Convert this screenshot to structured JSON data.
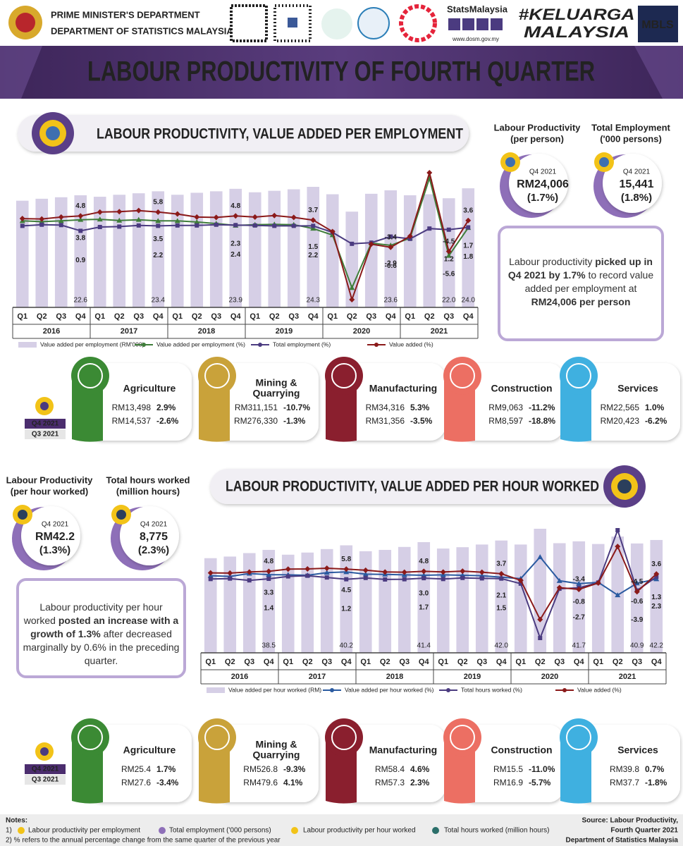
{
  "header": {
    "org_lines": [
      "PRIME MINISTER'S DEPARTMENT",
      "DEPARTMENT OF STATISTICS MALAYSIA"
    ],
    "logo_texts": [
      "StatsMalaysia",
      "www.dosm.gov.my",
      "#KELUARGA",
      "MALAYSIA",
      "MBLS"
    ]
  },
  "banner_title": "LABOUR PRODUCTIVITY OF FOURTH QUARTER",
  "chart_data": [
    {
      "type": "combo",
      "title": "LABOUR PRODUCTIVITY, VALUE ADDED PER EMPLOYMENT",
      "categories": [
        "Q1",
        "Q2",
        "Q3",
        "Q4",
        "Q1",
        "Q2",
        "Q3",
        "Q4",
        "Q1",
        "Q2",
        "Q3",
        "Q4",
        "Q1",
        "Q2",
        "Q3",
        "Q4",
        "Q1",
        "Q2",
        "Q3",
        "Q4",
        "Q1",
        "Q2",
        "Q3",
        "Q4"
      ],
      "category_groups": [
        "2016",
        "2017",
        "2018",
        "2019",
        "2020",
        "2021"
      ],
      "series": [
        {
          "name": "Value added per employment (RM'000)",
          "type": "bar",
          "color": "#d6cfe6",
          "values": [
            21.5,
            21.9,
            22.2,
            22.6,
            22.3,
            22.7,
            23.0,
            23.4,
            22.7,
            23.1,
            23.4,
            23.9,
            23.2,
            23.5,
            23.8,
            24.3,
            22.8,
            19.3,
            22.9,
            23.6,
            22.6,
            22.8,
            22.0,
            24.0
          ],
          "value_labels": [
            null,
            null,
            null,
            "22.6",
            null,
            null,
            null,
            "23.4",
            null,
            null,
            null,
            "23.9",
            null,
            null,
            null,
            "24.3",
            null,
            null,
            null,
            "23.6",
            null,
            null,
            "22.0",
            "24.0"
          ]
        },
        {
          "name": "Value added per employment (%)",
          "type": "line",
          "marker": "triangle",
          "color": "#3f7d3a",
          "values": [
            3.5,
            3.3,
            3.5,
            3.8,
            3.9,
            3.6,
            3.8,
            3.5,
            3.5,
            3.2,
            2.8,
            2.3,
            2.5,
            2.6,
            2.5,
            1.5,
            -0.2,
            -14.0,
            -2.3,
            -2.9,
            -1.0,
            14.7,
            -5.6,
            1.7
          ],
          "value_labels": [
            null,
            null,
            null,
            "3.8",
            null,
            null,
            null,
            "3.5",
            null,
            null,
            null,
            "2.3",
            null,
            null,
            null,
            "1.5",
            null,
            null,
            null,
            "-2.9",
            null,
            null,
            "-5.6",
            "1.7"
          ]
        },
        {
          "name": "Total employment (%)",
          "type": "line",
          "marker": "square",
          "color": "#4b3b80",
          "values": [
            2.2,
            2.5,
            2.4,
            0.9,
            1.9,
            2.0,
            2.3,
            2.2,
            2.3,
            2.3,
            2.5,
            2.4,
            2.3,
            2.2,
            2.2,
            2.2,
            0.5,
            -2.5,
            -2.2,
            -0.6,
            -1.2,
            1.5,
            1.2,
            1.8
          ],
          "value_labels": [
            null,
            null,
            null,
            "0.9",
            null,
            null,
            null,
            "2.2",
            null,
            null,
            null,
            "2.4",
            null,
            null,
            null,
            "2.2",
            null,
            null,
            null,
            "-0.6",
            null,
            null,
            "1.2",
            "1.8"
          ]
        },
        {
          "name": "Value added (%)",
          "type": "line",
          "marker": "diamond",
          "color": "#8b1a1a",
          "values": [
            4.1,
            4.0,
            4.5,
            4.8,
            5.8,
            5.9,
            6.2,
            5.8,
            5.3,
            4.5,
            4.4,
            4.8,
            4.5,
            4.9,
            4.4,
            3.7,
            0.7,
            -17.1,
            -2.6,
            -3.4,
            -0.5,
            16.1,
            -4.5,
            3.6
          ],
          "value_labels": [
            null,
            null,
            null,
            "4.8",
            null,
            null,
            null,
            "5.8",
            null,
            null,
            null,
            "4.8",
            null,
            null,
            null,
            "3.7",
            null,
            null,
            null,
            "-3.4",
            null,
            null,
            "-4.5",
            "3.6"
          ]
        }
      ]
    },
    {
      "type": "combo",
      "title": "LABOUR PRODUCTIVITY, VALUE ADDED PER HOUR WORKED",
      "categories": [
        "Q1",
        "Q2",
        "Q3",
        "Q4",
        "Q1",
        "Q2",
        "Q3",
        "Q4",
        "Q1",
        "Q2",
        "Q3",
        "Q4",
        "Q1",
        "Q2",
        "Q3",
        "Q4",
        "Q1",
        "Q2",
        "Q3",
        "Q4",
        "Q1",
        "Q2",
        "Q3",
        "Q4"
      ],
      "category_groups": [
        "2016",
        "2017",
        "2018",
        "2019",
        "2020",
        "2021"
      ],
      "series": [
        {
          "name": "Value added per hour worked (RM)",
          "type": "bar",
          "color": "#d6cfe6",
          "values": [
            35.4,
            36.0,
            37.3,
            38.5,
            36.7,
            37.5,
            38.8,
            40.2,
            38.0,
            38.5,
            39.6,
            41.4,
            39.0,
            39.5,
            40.5,
            42.0,
            40.5,
            46.4,
            41.0,
            41.7,
            40.7,
            43.5,
            40.9,
            42.2
          ],
          "value_labels": [
            null,
            null,
            null,
            "38.5",
            null,
            null,
            null,
            "40.2",
            null,
            null,
            null,
            "41.4",
            null,
            null,
            null,
            "42.0",
            null,
            null,
            null,
            "41.7",
            null,
            null,
            "40.9",
            "42.2"
          ]
        },
        {
          "name": "Value added per hour worked (%)",
          "type": "line",
          "marker": "triangle",
          "color": "#2a5aa0",
          "values": [
            2.8,
            2.5,
            3.8,
            3.3,
            3.2,
            3.0,
            4.2,
            4.5,
            3.5,
            3.4,
            3.2,
            3.0,
            3.2,
            3.0,
            2.8,
            2.1,
            1.5,
            11.3,
            0.5,
            -0.8,
            -0.2,
            -6.0,
            -0.6,
            1.3
          ],
          "value_labels": [
            null,
            null,
            null,
            "3.3",
            null,
            null,
            null,
            "4.5",
            null,
            null,
            null,
            "3.0",
            null,
            null,
            null,
            "2.1",
            null,
            null,
            null,
            "-0.8",
            null,
            null,
            "-0.6",
            "1.3"
          ]
        },
        {
          "name": "Total hours worked (%)",
          "type": "line",
          "marker": "square",
          "color": "#4b3b80",
          "values": [
            1.3,
            1.5,
            0.7,
            1.4,
            2.5,
            2.8,
            2.0,
            1.2,
            1.8,
            1.1,
            1.2,
            1.7,
            1.3,
            1.8,
            1.6,
            1.5,
            -0.8,
            -25.5,
            -3.1,
            -2.7,
            -0.3,
            23.5,
            -3.9,
            2.3
          ],
          "value_labels": [
            null,
            null,
            null,
            "1.4",
            null,
            null,
            null,
            "1.2",
            null,
            null,
            null,
            "1.7",
            null,
            null,
            null,
            "1.5",
            null,
            null,
            null,
            "-2.7",
            null,
            null,
            "-3.9",
            "2.3"
          ]
        },
        {
          "name": "Value added (%)",
          "type": "line",
          "marker": "diamond",
          "color": "#8b1a1a",
          "values": [
            4.1,
            4.0,
            4.5,
            4.8,
            5.8,
            5.9,
            6.2,
            5.8,
            5.3,
            4.5,
            4.4,
            4.8,
            4.5,
            4.9,
            4.4,
            3.7,
            0.7,
            -17.1,
            -2.6,
            -3.4,
            -0.5,
            16.1,
            -4.5,
            3.6
          ],
          "value_labels": [
            null,
            null,
            null,
            "4.8",
            null,
            null,
            null,
            "5.8",
            null,
            null,
            null,
            "4.8",
            null,
            null,
            null,
            "3.7",
            null,
            null,
            null,
            "-3.4",
            null,
            null,
            "-4.5",
            "3.6"
          ]
        }
      ]
    }
  ],
  "section1": {
    "kpis": [
      {
        "label_lines": [
          "Labour Productivity",
          "(per person)"
        ],
        "period": "Q4 2021",
        "value": "RM24,006",
        "change": "(1.7%)"
      },
      {
        "label_lines": [
          "Total Employment",
          "('000 persons)"
        ],
        "period": "Q4 2021",
        "value": "15,441",
        "change": "(1.8%)"
      }
    ],
    "summary": [
      {
        "text": "Labour productivity ",
        "bold": false
      },
      {
        "text": "picked up in Q4 2021 by 1.7%",
        "bold": true
      },
      {
        "text": " to record value added per employment at ",
        "bold": false
      },
      {
        "text": "RM24,006 per person",
        "bold": true
      }
    ],
    "sector_legend": [
      "Q4 2021",
      "Q3 2021"
    ],
    "sectors": [
      {
        "name_lines": [
          "Agriculture"
        ],
        "color": "#3b8a34",
        "q4_value": "RM13,498",
        "q4_change": "2.9%",
        "q3_value": "RM14,537",
        "q3_change": "-2.6%"
      },
      {
        "name_lines": [
          "Mining &",
          "Quarrying"
        ],
        "color": "#c9a23a",
        "q4_value": "RM311,151",
        "q4_change": "-10.7%",
        "q3_value": "RM276,330",
        "q3_change": "-1.3%"
      },
      {
        "name_lines": [
          "Manufacturing"
        ],
        "color": "#8a1f2e",
        "q4_value": "RM34,316",
        "q4_change": "5.3%",
        "q3_value": "RM31,356",
        "q3_change": "-3.5%"
      },
      {
        "name_lines": [
          "Construction"
        ],
        "color": "#ec6f63",
        "q4_value": "RM9,063",
        "q4_change": "-11.2%",
        "q3_value": "RM8,597",
        "q3_change": "-18.8%"
      },
      {
        "name_lines": [
          "Services"
        ],
        "color": "#3fb0e0",
        "q4_value": "RM22,565",
        "q4_change": "1.0%",
        "q3_value": "RM20,423",
        "q3_change": "-6.2%"
      }
    ]
  },
  "section2": {
    "kpis": [
      {
        "label_lines": [
          "Labour Productivity",
          "(per hour worked)"
        ],
        "period": "Q4 2021",
        "value": "RM42.2",
        "change": "(1.3%)"
      },
      {
        "label_lines": [
          "Total hours worked",
          "(million hours)"
        ],
        "period": "Q4 2021",
        "value": "8,775",
        "change": "(2.3%)"
      }
    ],
    "summary": [
      {
        "text": "Labour productivity per hour worked ",
        "bold": false
      },
      {
        "text": "posted an increase with a growth of 1.3%",
        "bold": true
      },
      {
        "text": " after decreased marginally by 0.6% in the preceding quarter.",
        "bold": false
      }
    ],
    "sector_legend": [
      "Q4 2021",
      "Q3 2021"
    ],
    "sectors": [
      {
        "name_lines": [
          "Agriculture"
        ],
        "color": "#3b8a34",
        "q4_value": "RM25.4",
        "q4_change": "1.7%",
        "q3_value": "RM27.6",
        "q3_change": "-3.4%"
      },
      {
        "name_lines": [
          "Mining &",
          "Quarrying"
        ],
        "color": "#c9a23a",
        "q4_value": "RM526.8",
        "q4_change": "-9.3%",
        "q3_value": "RM479.6",
        "q3_change": "4.1%"
      },
      {
        "name_lines": [
          "Manufacturing"
        ],
        "color": "#8a1f2e",
        "q4_value": "RM58.4",
        "q4_change": "4.6%",
        "q3_value": "RM57.3",
        "q3_change": "2.3%"
      },
      {
        "name_lines": [
          "Construction"
        ],
        "color": "#ec6f63",
        "q4_value": "RM15.5",
        "q4_change": "-11.0%",
        "q3_value": "RM16.9",
        "q3_change": "-5.7%"
      },
      {
        "name_lines": [
          "Services"
        ],
        "color": "#3fb0e0",
        "q4_value": "RM39.8",
        "q4_change": "0.7%",
        "q3_value": "RM37.7",
        "q3_change": "-1.8%"
      }
    ]
  },
  "notes": {
    "title": "Notes:",
    "item1_prefix": "1)",
    "legend": [
      "Labour productivity per employment",
      "Total employment ('000 persons)",
      "Labour productivity per hour worked",
      "Total hours worked (million hours)"
    ],
    "item2": "2) % refers to the annual percentage change from the same quarter of the previous year"
  },
  "source_lines": [
    "Source: Labour Productivity,",
    "Fourth Quarter 2021",
    "Department of Statistics Malaysia"
  ]
}
